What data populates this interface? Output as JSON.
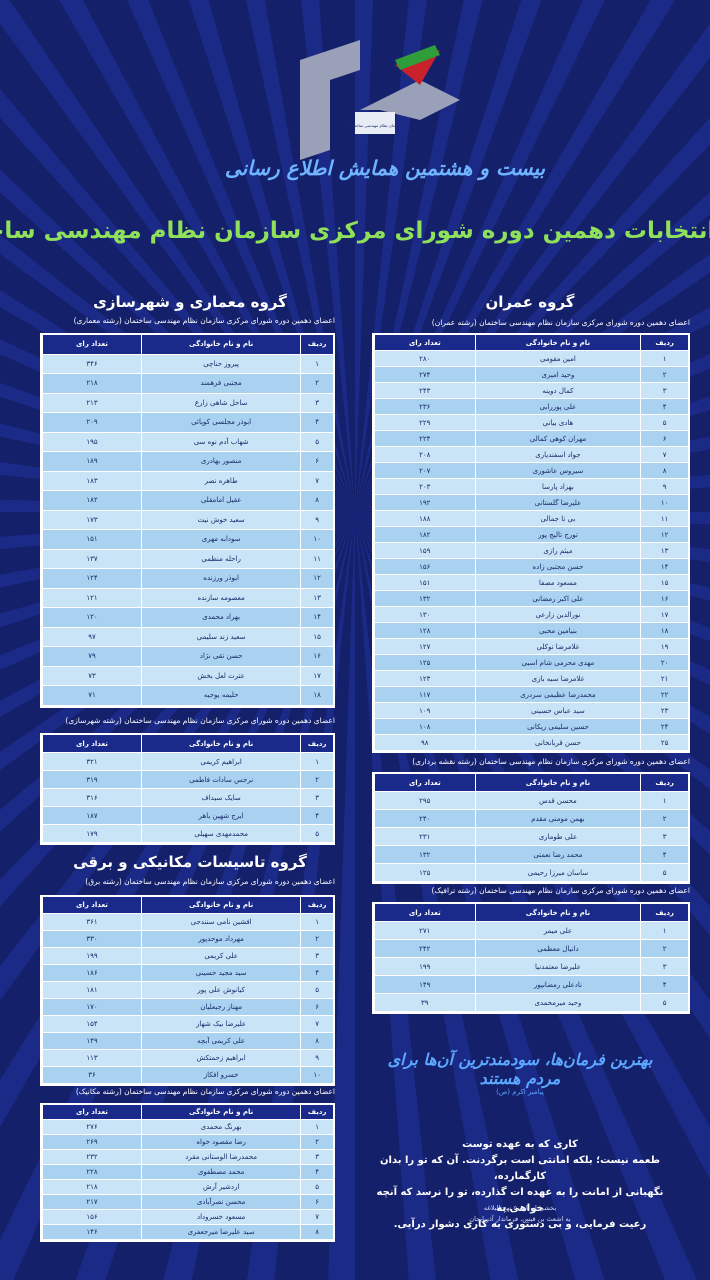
{
  "header": {
    "org": "سازمان نظام مهندسی ساختمان",
    "event": "بیست و هشتمین همایش اطلاع رسانی",
    "title": "نتایج انتخابات دهمین دوره شورای مرکزی سازمان نظام مهندسی ساختمان"
  },
  "columns": [
    "ردیف",
    "نام و نام خانوادگی",
    "تعداد رای"
  ],
  "headings": [
    "گروه عمران",
    "گروه معماری و شهرسازی",
    "گروه تاسیسات مکانیکی و برقی"
  ],
  "tables": [
    {
      "subtitle": "اعضای دهمین دوره شورای مرکزی سازمان نظام مهندسی ساختمان (رشته عمران)",
      "rows": [
        [
          "۱",
          "امین مقومی",
          "۲۸۰"
        ],
        [
          "۲",
          "وحید امیری",
          "۲۷۴"
        ],
        [
          "۳",
          "کمال دوینه",
          "۲۴۳"
        ],
        [
          "۴",
          "علی پوررابی",
          "۲۳۶"
        ],
        [
          "۵",
          "هادی بیانی",
          "۲۲۹"
        ],
        [
          "۶",
          "مهران کوهی کمالی",
          "۲۲۴"
        ],
        [
          "۷",
          "جواد اسفندیاری",
          "۲۰۸"
        ],
        [
          "۸",
          "سیروس عاشوری",
          "۲۰۷"
        ],
        [
          "۹",
          "بهزاد پارسا",
          "۲۰۳"
        ],
        [
          "۱۰",
          "علیرضا گلستانی",
          "۱۹۲"
        ],
        [
          "۱۱",
          "بی تا جمالی",
          "۱۸۸"
        ],
        [
          "۱۲",
          "تورج تالیج پور",
          "۱۸۲"
        ],
        [
          "۱۳",
          "میثم رازی",
          "۱۵۹"
        ],
        [
          "۱۴",
          "حسن مجتبی زاده",
          "۱۵۶"
        ],
        [
          "۱۵",
          "مسعود مصفا",
          "۱۵۱"
        ],
        [
          "۱۶",
          "علی اکبر رمضانی",
          "۱۳۲"
        ],
        [
          "۱۷",
          "نورالدین زارعی",
          "۱۳۰"
        ],
        [
          "۱۸",
          "بنیامین محبی",
          "۱۲۸"
        ],
        [
          "۱۹",
          "غلامرضا توکلی",
          "۱۲۷"
        ],
        [
          "۲۰",
          "مهدی محرمی شام اسبی",
          "۱۲۵"
        ],
        [
          "۲۱",
          "غلامرضا سبه بازی",
          "۱۲۳"
        ],
        [
          "۲۲",
          "محمدرضا عظیمی سردری",
          "۱۱۷"
        ],
        [
          "۲۳",
          "سید عباس حسینی",
          "۱۰۹"
        ],
        [
          "۲۴",
          "حسین سلیمی ریکانی",
          "۱۰۸"
        ],
        [
          "۲۵",
          "حسن قربانخانی",
          "۹۸"
        ]
      ]
    },
    {
      "subtitle": "اعضای دهمین دوره شورای مرکزی سازمان نظام مهندسی ساختمان (رشته نقشه برداری)",
      "rows": [
        [
          "۱",
          "محسن قدس",
          "۲۹۵"
        ],
        [
          "۲",
          "بهمن مومنی مقدم",
          "۲۴۰"
        ],
        [
          "۳",
          "علی طوماری",
          "۲۳۱"
        ],
        [
          "۴",
          "محمد رضا نعمتی",
          "۱۳۲"
        ],
        [
          "۵",
          "ساسان میرزا رحیمی",
          "۱۲۵"
        ]
      ]
    },
    {
      "subtitle": "اعضای دهمین دوره شورای مرکزی سازمان نظام مهندسی ساختمان (رشته ترافیک)",
      "rows": [
        [
          "۱",
          "علی میمر",
          "۲۷۱"
        ],
        [
          "۲",
          "دانیال معظمی",
          "۲۴۲"
        ],
        [
          "۳",
          "علیرضا معتمدنیا",
          "۱۹۹"
        ],
        [
          "۴",
          "نادعلی رمضانپور",
          "۱۴۹"
        ],
        [
          "۵",
          "وحید میرمحمدی",
          "۳۹"
        ]
      ]
    },
    {
      "subtitle": "اعضای دهمین دوره شورای مرکزی سازمان نظام مهندسی ساختمان (رشته معماری)",
      "rows": [
        [
          "۱",
          "پیروز حناچی",
          "۳۴۶"
        ],
        [
          "۲",
          "مجتبی فرهمند",
          "۲۱۸"
        ],
        [
          "۳",
          "ساحل شاهی زارع",
          "۲۱۳"
        ],
        [
          "۴",
          "ابوذر مجلسی کوپائی",
          "۲۰۹"
        ],
        [
          "۵",
          "شهاب آدم نوه سی",
          "۱۹۵"
        ],
        [
          "۶",
          "منصور بهادری",
          "۱۸۹"
        ],
        [
          "۷",
          "طاهره نصر",
          "۱۸۳"
        ],
        [
          "۸",
          "عقیل امامقلی",
          "۱۸۲"
        ],
        [
          "۹",
          "سعید خوش نیت",
          "۱۷۳"
        ],
        [
          "۱۰",
          "سودابه مهری",
          "۱۵۱"
        ],
        [
          "۱۱",
          "راحله منظمی",
          "۱۳۷"
        ],
        [
          "۱۲",
          "ابوذر ورزنده",
          "۱۲۴"
        ],
        [
          "۱۳",
          "معصومه سازنده",
          "۱۲۱"
        ],
        [
          "۱۴",
          "بهراد محمدی",
          "۱۲۰"
        ],
        [
          "۱۵",
          "سعید زند سلیمی",
          "۹۷"
        ],
        [
          "۱۶",
          "حسن تقی نژاد",
          "۷۹"
        ],
        [
          "۱۷",
          "عترت لعل بخش",
          "۷۳"
        ],
        [
          "۱۸",
          "حلیمه یوجیه",
          "۷۱"
        ]
      ]
    },
    {
      "subtitle": "اعضای دهمین دوره شورای مرکزی سازمان نظام مهندسی ساختمان (رشته شهرسازی)",
      "rows": [
        [
          "۱",
          "ابراهیم کریمی",
          "۳۲۱"
        ],
        [
          "۲",
          "نرجس سادات فاطمی",
          "۳۱۹"
        ],
        [
          "۳",
          "سایک سیداف",
          "۳۱۶"
        ],
        [
          "۴",
          "ایرج شهین باهر",
          "۱۸۷"
        ],
        [
          "۵",
          "محمدمهدی سهیلی",
          "۱۷۹"
        ]
      ]
    },
    {
      "subtitle": "اعضای دهمین دوره شورای مرکزی سازمان نظام مهندسی ساختمان (رشته برق)",
      "rows": [
        [
          "۱",
          "افشین نامی سنندجی",
          "۳۶۱"
        ],
        [
          "۲",
          "مهرداد موحدپور",
          "۳۳۰"
        ],
        [
          "۳",
          "علی کریمی",
          "۱۹۹"
        ],
        [
          "۴",
          "سید مجید حسینی",
          "۱۸۶"
        ],
        [
          "۵",
          "کیانوش علی پور",
          "۱۸۱"
        ],
        [
          "۶",
          "مهناز رجبعلیان",
          "۱۷۰"
        ],
        [
          "۷",
          "علیرضا بیک شهاز",
          "۱۵۴"
        ],
        [
          "۸",
          "علی کریمی آبچه",
          "۱۴۹"
        ],
        [
          "۹",
          "ابراهیم زحمتکش",
          "۱۱۳"
        ],
        [
          "۱۰",
          "خسرو افکاز",
          "۳۶"
        ]
      ]
    },
    {
      "subtitle": "اعضای دهمین دوره شورای مرکزی سازمان نظام مهندسی ساختمان (رشته مکانیک)",
      "rows": [
        [
          "۱",
          "بهرنگ محمدی",
          "۲۷۶"
        ],
        [
          "۲",
          "رضا مقصود خواه",
          "۲۶۹"
        ],
        [
          "۳",
          "محمدرضا الوستانی مقرد",
          "۲۳۲"
        ],
        [
          "۴",
          "محمد مصطفوی",
          "۲۲۸"
        ],
        [
          "۵",
          "اردشیر آرش",
          "۲۱۸"
        ],
        [
          "۶",
          "محسن نصرآبادی",
          "۲۱۷"
        ],
        [
          "۷",
          "مسعود خسروداد",
          "۱۵۶"
        ],
        [
          "۸",
          "سید علیرضا میرجعفری",
          "۱۴۶"
        ]
      ]
    }
  ],
  "quote": {
    "calligraphy": "بهترین فرمان‌ها، سودمندترین آن‌ها برای مردم هستند",
    "attribution": "پیامبر اکرم (ص)",
    "lines": [
      "کاری که به عهده توست",
      "طعمه نیست؛ بلکه امانتی است برگردنت. آن که تو را بدان کارگمارده،",
      "نگهبانی از امانت را به عهده ات گذارده، تو را نرسد که آنچه خواهی به",
      "رعیت فرمایی، و بی دستوری به کاری دشوار درآیی."
    ],
    "source": [
      "بخشی از نامه ۵ نهج البلاغه",
      "به اشعث بن قیس، فرماندار آذربایجان"
    ]
  }
}
